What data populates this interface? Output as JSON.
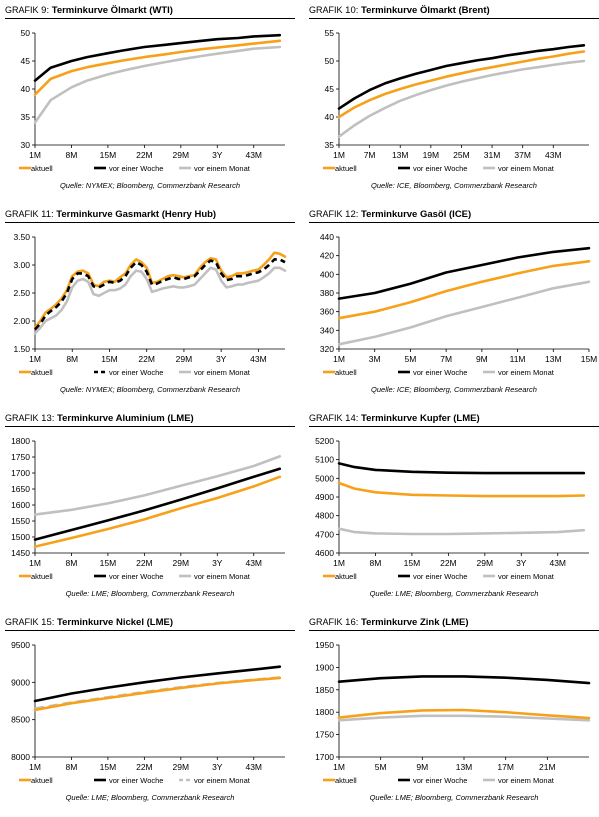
{
  "colors": {
    "aktuell": "#f7a11a",
    "woche": "#000000",
    "monat": "#c0c0c0"
  },
  "chart_data": [
    {
      "type": "line",
      "grafik_prefix": "GRAFIK",
      "number": "9",
      "title": "Terminkurve Ölmarkt (WTI)",
      "source": "Quelle: NYMEX; Bloomberg, Commerzbank Research",
      "ylim": [
        30,
        50
      ],
      "yticks": [
        30,
        35,
        40,
        45,
        50
      ],
      "x": [
        1,
        4,
        8,
        11,
        15,
        18,
        22,
        26,
        29,
        33,
        36,
        40,
        43,
        48
      ],
      "xlim": [
        1,
        49
      ],
      "xticks": [
        1,
        8,
        15,
        22,
        29,
        36,
        43
      ],
      "xtick_labels": [
        "1M",
        "8M",
        "15M",
        "22M",
        "29M",
        "3Y",
        "43M"
      ],
      "series": [
        {
          "name": "aktuell",
          "key": "aktuell",
          "dash": "",
          "values": [
            39.0,
            41.8,
            43.2,
            43.9,
            44.6,
            45.1,
            45.7,
            46.2,
            46.6,
            47.1,
            47.4,
            47.8,
            48.1,
            48.6
          ]
        },
        {
          "name": "vor einer Woche",
          "key": "woche",
          "dash": "",
          "values": [
            41.5,
            43.8,
            45.0,
            45.7,
            46.4,
            46.9,
            47.5,
            47.9,
            48.2,
            48.6,
            48.9,
            49.1,
            49.4,
            49.6
          ]
        },
        {
          "name": "vor einem Monat",
          "key": "monat",
          "dash": "",
          "values": [
            34.0,
            38.0,
            40.3,
            41.5,
            42.6,
            43.3,
            44.1,
            44.8,
            45.3,
            45.9,
            46.3,
            46.8,
            47.2,
            47.5
          ]
        }
      ]
    },
    {
      "type": "line",
      "grafik_prefix": "GRAFIK",
      "number": "10",
      "title": "Terminkurve Ölmarkt (Brent)",
      "source": "Quelle: ICE, Bloomberg, Commerzbank Research",
      "ylim": [
        35,
        55
      ],
      "yticks": [
        35,
        40,
        45,
        50,
        55
      ],
      "x": [
        1,
        4,
        7,
        10,
        13,
        16,
        19,
        22,
        25,
        28,
        31,
        34,
        37,
        40,
        43,
        46,
        49
      ],
      "xlim": [
        1,
        50
      ],
      "xticks": [
        1,
        7,
        13,
        19,
        25,
        31,
        37,
        43
      ],
      "xtick_labels": [
        "1M",
        "7M",
        "13M",
        "19M",
        "25M",
        "31M",
        "37M",
        "43M"
      ],
      "series": [
        {
          "name": "aktuell",
          "key": "aktuell",
          "dash": "",
          "values": [
            40.0,
            41.7,
            43.0,
            44.1,
            45.0,
            45.8,
            46.5,
            47.2,
            47.8,
            48.4,
            48.9,
            49.4,
            49.9,
            50.4,
            50.8,
            51.3,
            51.7
          ]
        },
        {
          "name": "vor einer Woche",
          "key": "woche",
          "dash": "",
          "values": [
            41.5,
            43.3,
            44.8,
            46.0,
            46.9,
            47.7,
            48.4,
            49.1,
            49.6,
            50.1,
            50.5,
            51.0,
            51.4,
            51.8,
            52.1,
            52.5,
            52.8
          ]
        },
        {
          "name": "vor einem Monat",
          "key": "monat",
          "dash": "",
          "values": [
            36.5,
            38.5,
            40.2,
            41.6,
            42.9,
            43.9,
            44.8,
            45.6,
            46.3,
            46.9,
            47.5,
            48.0,
            48.5,
            48.9,
            49.3,
            49.7,
            50.0
          ]
        }
      ]
    },
    {
      "type": "line",
      "grafik_prefix": "GRAFIK",
      "number": "11",
      "title": "Terminkurve Gasmarkt (Henry Hub)",
      "source": "Quelle: NYMEX; Bloomberg, Commerzbank Research",
      "ylim": [
        1.5,
        3.5
      ],
      "yticks": [
        1.5,
        2.0,
        2.5,
        3.0,
        3.5
      ],
      "x": [
        1,
        2,
        3,
        4,
        5,
        6,
        7,
        8,
        9,
        10,
        11,
        12,
        13,
        14,
        15,
        16,
        17,
        18,
        19,
        20,
        21,
        22,
        23,
        24,
        25,
        26,
        27,
        28,
        29,
        30,
        31,
        32,
        33,
        34,
        35,
        36,
        37,
        38,
        39,
        40,
        41,
        42,
        43,
        44,
        45,
        46,
        47,
        48
      ],
      "xlim": [
        1,
        48
      ],
      "xticks": [
        1,
        8,
        15,
        22,
        29,
        36,
        43
      ],
      "xtick_labels": [
        "1M",
        "8M",
        "15M",
        "22M",
        "29M",
        "3Y",
        "43M"
      ],
      "series": [
        {
          "name": "aktuell",
          "key": "aktuell",
          "dash": "",
          "values": [
            1.88,
            2.0,
            2.15,
            2.22,
            2.3,
            2.4,
            2.55,
            2.8,
            2.88,
            2.9,
            2.85,
            2.65,
            2.62,
            2.7,
            2.72,
            2.7,
            2.78,
            2.85,
            3.0,
            3.1,
            3.05,
            2.95,
            2.68,
            2.7,
            2.75,
            2.8,
            2.82,
            2.8,
            2.78,
            2.8,
            2.82,
            2.95,
            3.05,
            3.12,
            3.1,
            2.9,
            2.78,
            2.8,
            2.85,
            2.85,
            2.87,
            2.9,
            2.92,
            3.0,
            3.1,
            3.22,
            3.2,
            3.15
          ]
        },
        {
          "name": "vor einer Woche",
          "key": "woche",
          "dash": "6,4",
          "values": [
            1.85,
            1.95,
            2.1,
            2.18,
            2.25,
            2.35,
            2.5,
            2.75,
            2.85,
            2.85,
            2.8,
            2.62,
            2.6,
            2.65,
            2.7,
            2.68,
            2.72,
            2.8,
            2.95,
            3.05,
            3.0,
            2.88,
            2.65,
            2.67,
            2.72,
            2.75,
            2.78,
            2.75,
            2.75,
            2.78,
            2.8,
            2.9,
            3.0,
            3.08,
            3.05,
            2.85,
            2.73,
            2.75,
            2.8,
            2.8,
            2.82,
            2.85,
            2.87,
            2.92,
            3.0,
            3.1,
            3.1,
            3.05
          ]
        },
        {
          "name": "vor einem Monat",
          "key": "monat",
          "dash": "",
          "values": [
            1.78,
            1.88,
            2.0,
            2.05,
            2.1,
            2.2,
            2.35,
            2.6,
            2.72,
            2.75,
            2.7,
            2.48,
            2.45,
            2.5,
            2.55,
            2.55,
            2.58,
            2.65,
            2.8,
            2.9,
            2.88,
            2.75,
            2.52,
            2.55,
            2.58,
            2.6,
            2.62,
            2.6,
            2.6,
            2.62,
            2.65,
            2.75,
            2.85,
            2.95,
            2.92,
            2.72,
            2.6,
            2.62,
            2.65,
            2.65,
            2.68,
            2.7,
            2.72,
            2.78,
            2.85,
            2.95,
            2.95,
            2.9
          ]
        }
      ]
    },
    {
      "type": "line",
      "grafik_prefix": "GRAFIK",
      "number": "12",
      "title": "Terminkurve Gasöl (ICE)",
      "source": "Quelle: ICE; Bloomberg, Commerzbank Research",
      "ylim": [
        320,
        440
      ],
      "yticks": [
        320,
        340,
        360,
        380,
        400,
        420,
        440
      ],
      "x": [
        1,
        3,
        5,
        7,
        9,
        11,
        13,
        15
      ],
      "xlim": [
        1,
        15
      ],
      "xticks": [
        1,
        3,
        5,
        7,
        9,
        11,
        13,
        15
      ],
      "xtick_labels": [
        "1M",
        "3M",
        "5M",
        "7M",
        "9M",
        "11M",
        "13M",
        "15M"
      ],
      "series": [
        {
          "name": "aktuell",
          "key": "aktuell",
          "dash": "",
          "values": [
            353,
            360,
            370,
            382,
            392,
            401,
            409,
            414
          ]
        },
        {
          "name": "vor einer Woche",
          "key": "woche",
          "dash": "",
          "values": [
            374,
            380,
            390,
            402,
            410,
            418,
            424,
            428
          ]
        },
        {
          "name": "vor einem Monat",
          "key": "monat",
          "dash": "",
          "values": [
            325,
            333,
            343,
            355,
            365,
            375,
            385,
            392
          ]
        }
      ]
    },
    {
      "type": "line",
      "grafik_prefix": "GRAFIK",
      "number": "13",
      "title": "Terminkurve Aluminium (LME)",
      "source": "Quelle: LME; Bloomberg, Commerzbank Research",
      "ylim": [
        1450,
        1800
      ],
      "yticks": [
        1450,
        1500,
        1550,
        1600,
        1650,
        1700,
        1750,
        1800
      ],
      "x": [
        1,
        8,
        15,
        22,
        29,
        36,
        43,
        48
      ],
      "xlim": [
        1,
        49
      ],
      "xticks": [
        1,
        8,
        15,
        22,
        29,
        36,
        43
      ],
      "xtick_labels": [
        "1M",
        "8M",
        "15M",
        "22M",
        "29M",
        "3Y",
        "43M"
      ],
      "series": [
        {
          "name": "aktuell",
          "key": "aktuell",
          "dash": "",
          "values": [
            1470,
            1497,
            1525,
            1555,
            1590,
            1622,
            1658,
            1688
          ]
        },
        {
          "name": "vor einer Woche",
          "key": "woche",
          "dash": "",
          "values": [
            1492,
            1522,
            1552,
            1583,
            1617,
            1652,
            1688,
            1713
          ]
        },
        {
          "name": "vor einem Monat",
          "key": "monat",
          "dash": "",
          "values": [
            1570,
            1585,
            1605,
            1630,
            1660,
            1690,
            1722,
            1752
          ]
        }
      ]
    },
    {
      "type": "line",
      "grafik_prefix": "GRAFIK",
      "number": "14",
      "title": "Terminkurve Kupfer (LME)",
      "source": "Quelle: LME; Bloomberg, Commerzbank Research",
      "ylim": [
        4600,
        5200
      ],
      "yticks": [
        4600,
        4700,
        4800,
        4900,
        5000,
        5100,
        5200
      ],
      "x": [
        1,
        4,
        8,
        15,
        22,
        29,
        36,
        43,
        48
      ],
      "xlim": [
        1,
        49
      ],
      "xticks": [
        1,
        8,
        15,
        22,
        29,
        36,
        43
      ],
      "xtick_labels": [
        "1M",
        "8M",
        "15M",
        "22M",
        "29M",
        "3Y",
        "43M"
      ],
      "series": [
        {
          "name": "aktuell",
          "key": "aktuell",
          "dash": "",
          "values": [
            4975,
            4945,
            4925,
            4912,
            4908,
            4905,
            4905,
            4905,
            4908
          ]
        },
        {
          "name": "vor einer Woche",
          "key": "woche",
          "dash": "",
          "values": [
            5080,
            5060,
            5045,
            5035,
            5030,
            5028,
            5028,
            5028,
            5028
          ]
        },
        {
          "name": "vor einem Monat",
          "key": "monat",
          "dash": "",
          "values": [
            4730,
            4712,
            4705,
            4702,
            4702,
            4705,
            4708,
            4712,
            4722
          ]
        }
      ]
    },
    {
      "type": "line",
      "grafik_prefix": "GRAFIK",
      "number": "15",
      "title": "Terminkurve Nickel (LME)",
      "source": "Quelle: LME; Bloomberg, Commerzbank Research",
      "ylim": [
        8000,
        9500
      ],
      "yticks": [
        8000,
        8500,
        9000,
        9500
      ],
      "x": [
        1,
        8,
        15,
        22,
        29,
        36,
        43,
        48
      ],
      "xlim": [
        1,
        49
      ],
      "xticks": [
        1,
        8,
        15,
        22,
        29,
        36,
        43
      ],
      "xtick_labels": [
        "1M",
        "8M",
        "15M",
        "22M",
        "29M",
        "3Y",
        "43M"
      ],
      "series": [
        {
          "name": "aktuell",
          "key": "aktuell",
          "dash": "",
          "values": [
            8630,
            8720,
            8790,
            8860,
            8925,
            8985,
            9030,
            9060
          ]
        },
        {
          "name": "vor einer Woche",
          "key": "woche",
          "dash": "",
          "values": [
            8750,
            8850,
            8930,
            9000,
            9065,
            9120,
            9170,
            9210
          ]
        },
        {
          "name": "vor einem Monat",
          "key": "monat",
          "dash": "9,5",
          "values": [
            8650,
            8730,
            8800,
            8870,
            8935,
            8990,
            9035,
            9065
          ]
        }
      ]
    },
    {
      "type": "line",
      "grafik_prefix": "GRAFIK",
      "number": "16",
      "title": "Terminkurve Zink (LME)",
      "source": "Quelle: LME; Bloomberg, Commerzbank Research",
      "ylim": [
        1700,
        1950
      ],
      "yticks": [
        1700,
        1750,
        1800,
        1850,
        1900,
        1950
      ],
      "x": [
        1,
        5,
        9,
        13,
        17,
        21,
        25
      ],
      "xlim": [
        1,
        25
      ],
      "xticks": [
        1,
        5,
        9,
        13,
        17,
        21
      ],
      "xtick_labels": [
        "1M",
        "5M",
        "9M",
        "13M",
        "17M",
        "21M"
      ],
      "series": [
        {
          "name": "aktuell",
          "key": "aktuell",
          "dash": "",
          "values": [
            1788,
            1798,
            1804,
            1805,
            1800,
            1793,
            1787
          ]
        },
        {
          "name": "vor einer Woche",
          "key": "woche",
          "dash": "",
          "values": [
            1868,
            1876,
            1880,
            1880,
            1877,
            1872,
            1865
          ]
        },
        {
          "name": "vor einem Monat",
          "key": "monat",
          "dash": "",
          "values": [
            1782,
            1788,
            1792,
            1792,
            1790,
            1786,
            1782
          ]
        }
      ]
    }
  ]
}
